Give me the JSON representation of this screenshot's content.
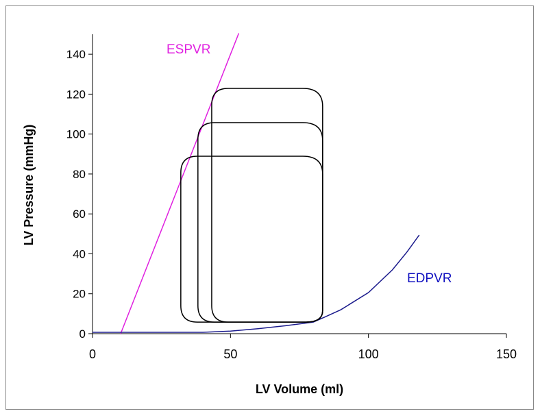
{
  "chart_data": {
    "type": "line",
    "title": "",
    "xlabel": "LV Volume (ml)",
    "ylabel": "LV Pressure (mmHg)",
    "xlim": [
      0,
      150
    ],
    "ylim": [
      0,
      150
    ],
    "xticks": [
      0,
      50,
      100,
      150
    ],
    "yticks": [
      0,
      20,
      40,
      60,
      80,
      100,
      120,
      140
    ],
    "grid": false,
    "series": [
      {
        "name": "ESPVR",
        "color": "#e020e0",
        "x": [
          10.2,
          53
        ],
        "y": [
          0,
          150.5
        ]
      },
      {
        "name": "EDPVR",
        "color": "#1a1a8c",
        "x": [
          0,
          40,
          50,
          60,
          70,
          80,
          84,
          90,
          100,
          108.7,
          114,
          118.4
        ],
        "y": [
          0.7,
          0.7,
          1.3,
          2.5,
          4,
          5.8,
          8.2,
          12,
          20.6,
          32,
          41,
          49.4
        ]
      },
      {
        "name": "PV loop 1",
        "color": "#000000",
        "esv": 43.2,
        "edv": 83.4,
        "peak": 122.9,
        "min": 5.8
      },
      {
        "name": "PV loop 2",
        "color": "#000000",
        "esv": 38.2,
        "edv": 83.4,
        "peak": 105.7,
        "min": 5.8
      },
      {
        "name": "PV loop 3",
        "color": "#000000",
        "esv": 32.0,
        "edv": 83.4,
        "peak": 88.9,
        "min": 5.8
      }
    ],
    "annotations": [
      {
        "text": "ESPVR",
        "color": "#e020e0"
      },
      {
        "text": "EDPVR",
        "color": "#1010c0"
      }
    ],
    "legend": "none"
  }
}
